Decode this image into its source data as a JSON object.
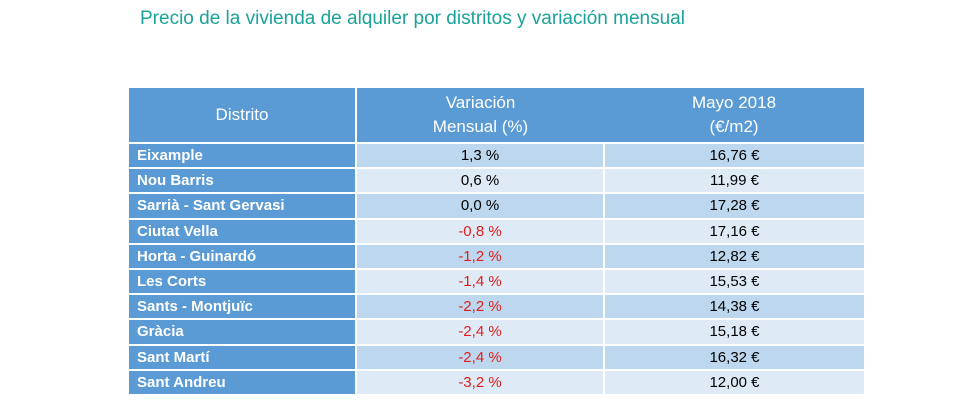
{
  "title": "Precio de la vivienda de alquiler por distritos y variación mensual",
  "colors": {
    "title": "#1aa39a",
    "header_bg": "#5b9bd5",
    "row_dark": "#bdd7ee",
    "row_light": "#deebf7",
    "negative": "#e0201c"
  },
  "table": {
    "headers": {
      "district": "Distrito",
      "variation_line1": "Variación",
      "variation_line2": "Mensual (%)",
      "price_line1": "Mayo 2018",
      "price_line2": "(€/m2)"
    },
    "rows": [
      {
        "district": "Eixample",
        "variation": "1,3 %",
        "price": "16,76 €",
        "negative": false
      },
      {
        "district": "Nou Barris",
        "variation": "0,6 %",
        "price": "11,99 €",
        "negative": false
      },
      {
        "district": "Sarrià - Sant Gervasi",
        "variation": "0,0 %",
        "price": "17,28 €",
        "negative": false
      },
      {
        "district": "Ciutat Vella",
        "variation": "-0,8 %",
        "price": "17,16 €",
        "negative": true
      },
      {
        "district": "Horta - Guinardó",
        "variation": "-1,2 %",
        "price": "12,82 €",
        "negative": true
      },
      {
        "district": "Les Corts",
        "variation": "-1,4 %",
        "price": "15,53 €",
        "negative": true
      },
      {
        "district": "Sants - Montjuïc",
        "variation": "-2,2 %",
        "price": "14,38 €",
        "negative": true
      },
      {
        "district": "Gràcia",
        "variation": "-2,4 %",
        "price": "15,18 €",
        "negative": true
      },
      {
        "district": "Sant Martí",
        "variation": "-2,4 %",
        "price": "16,32 €",
        "negative": true
      },
      {
        "district": "Sant Andreu",
        "variation": "-3,2 %",
        "price": "12,00 €",
        "negative": true
      }
    ]
  }
}
